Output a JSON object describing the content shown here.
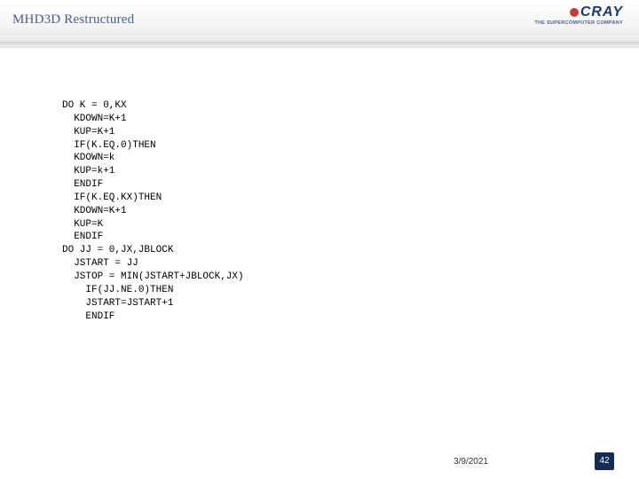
{
  "header": {
    "title": "MHD3D Restructured",
    "logo_text": "CRAY",
    "logo_tagline": "THE SUPERCOMPUTER COMPANY"
  },
  "code": {
    "lines": [
      "DO K = 0,KX",
      "  KDOWN=K+1",
      "  KUP=K+1",
      "  IF(K.EQ.0)THEN",
      "  KDOWN=k",
      "  KUP=k+1",
      "  ENDIF",
      "  IF(K.EQ.KX)THEN",
      "  KDOWN=K+1",
      "  KUP=K",
      "  ENDIF",
      "DO JJ = 0,JX,JBLOCK",
      "  JSTART = JJ",
      "  JSTOP = MIN(JSTART+JBLOCK,JX)",
      "    IF(JJ.NE.0)THEN",
      "    JSTART=JSTART+1",
      "    ENDIF"
    ]
  },
  "footer": {
    "date": "3/9/2021",
    "page": "42"
  },
  "colors": {
    "title_color": "#4a5c8a",
    "logo_color": "#1a3a6e",
    "logo_accent": "#c23b3b",
    "badge_bg": "#162b54",
    "code_color": "#000000",
    "bg": "#ffffff"
  },
  "typography": {
    "title_fontsize": 15,
    "code_fontsize": 11,
    "footer_fontsize": 10,
    "code_font": "Courier New"
  }
}
